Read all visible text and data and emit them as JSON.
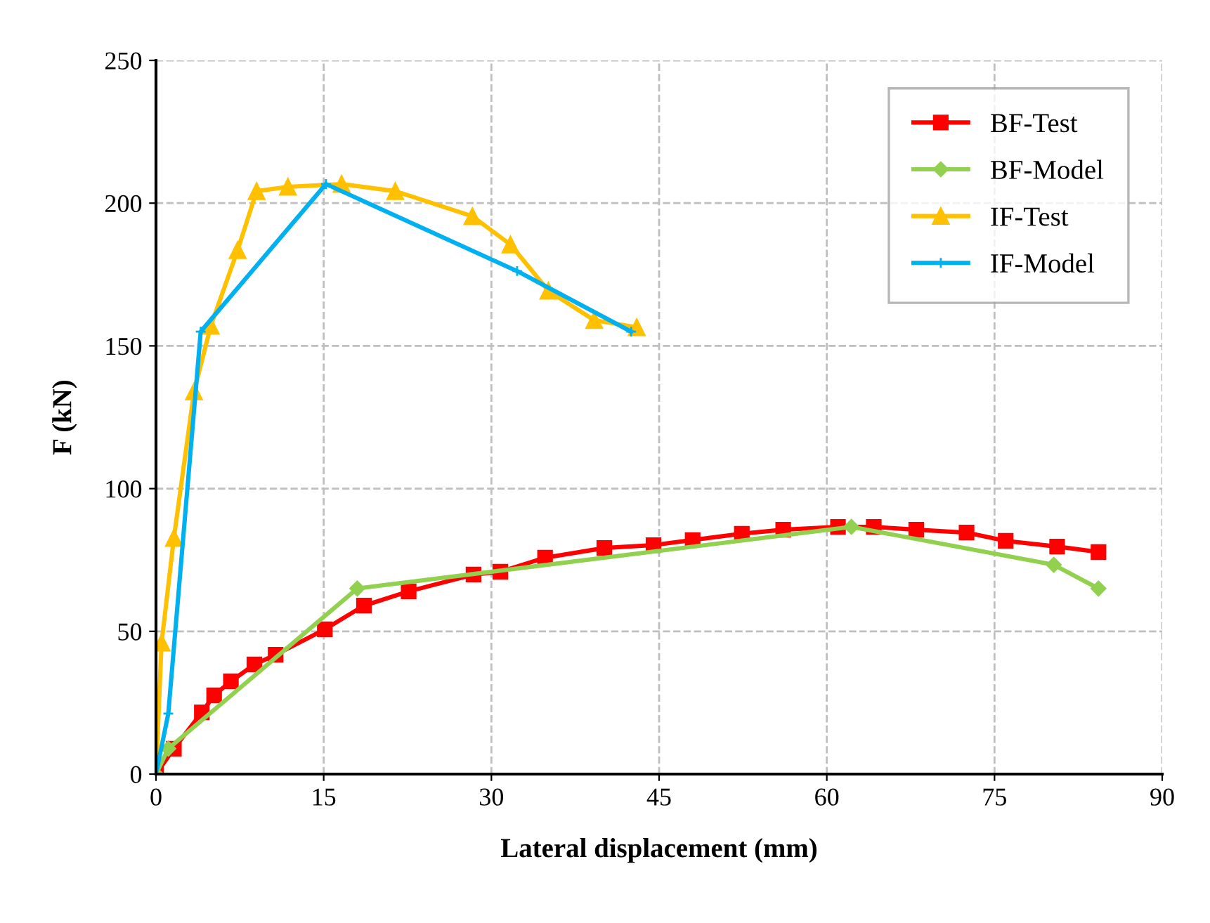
{
  "chart_data": {
    "type": "line",
    "xlabel": "Lateral displacement (mm)",
    "ylabel": "F (kN)",
    "xlim": [
      0,
      90
    ],
    "xticks": [
      0,
      15,
      30,
      45,
      60,
      75,
      90
    ],
    "ylim": [
      0,
      250
    ],
    "yticks": [
      0,
      50,
      100,
      150,
      200,
      250
    ],
    "grid": true,
    "legend": "top right",
    "line_style": "solid",
    "series": [
      {
        "name": "BF-Test",
        "color": "#ff0000",
        "marker": "square",
        "x": [
          0,
          1.6,
          4.1,
          5.2,
          6.7,
          8.8,
          10.7,
          15.1,
          18.6,
          22.6,
          28.4,
          30.8,
          34.8,
          40.1,
          44.5,
          48,
          52.4,
          56.1,
          61,
          64.2,
          68,
          72.5,
          76,
          80.6,
          84.3
        ],
        "values": [
          0,
          8.9,
          21.6,
          27.6,
          32.5,
          38.4,
          41.8,
          50.7,
          59,
          64,
          69.9,
          70.9,
          75.8,
          79.2,
          80.2,
          82,
          84.2,
          85.6,
          86.6,
          86.6,
          85.6,
          84.6,
          81.7,
          79.7,
          77.8
        ]
      },
      {
        "name": "BF-Model",
        "color": "#92d050",
        "marker": "diamond",
        "x": [
          0,
          1.1,
          18,
          62.2,
          80.3,
          84.3
        ],
        "values": [
          0,
          8.9,
          65,
          86.6,
          73.3,
          65
        ]
      },
      {
        "name": "IF-Test",
        "color": "#ffc000",
        "marker": "triangle",
        "x": [
          0,
          0.5,
          1.6,
          3.4,
          4.9,
          7.3,
          9,
          11.8,
          16.6,
          21.4,
          28.3,
          31.7,
          35.1,
          39.2,
          43
        ],
        "values": [
          0,
          46,
          82.7,
          134,
          157,
          183.5,
          204.2,
          205.7,
          206.7,
          204.2,
          195.4,
          185.5,
          169.3,
          159,
          156.5
        ]
      },
      {
        "name": "IF-Model",
        "color": "#00b0f0",
        "marker": "cross",
        "x": [
          0,
          1.1,
          4,
          15.2,
          32.3,
          42.5
        ],
        "values": [
          0,
          21.2,
          155,
          206.7,
          176.2,
          155
        ]
      }
    ]
  }
}
